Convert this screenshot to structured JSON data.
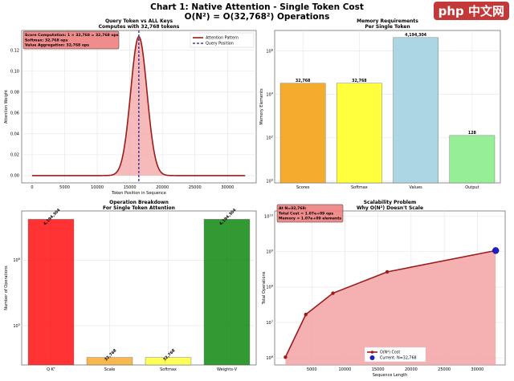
{
  "page": {
    "title_line1": "Chart 1: Native Attention - Single Token Cost",
    "title_line2": "O(N²) = O(32,768²) Operations",
    "watermark": "php 中文网"
  },
  "chart_data": [
    {
      "id": "attn",
      "type": "line",
      "title": "Query Token vs ALL Keys",
      "subtitle": "Computes with 32,768 tokens",
      "xlabel": "Token Position in Sequence",
      "ylabel": "Attention Weight",
      "xlim": [
        -1600,
        34400
      ],
      "ylim": [
        -0.007,
        0.139
      ],
      "xticks": [
        0,
        5000,
        10000,
        15000,
        20000,
        25000,
        30000
      ],
      "yticks": [
        0.0,
        0.02,
        0.04,
        0.06,
        0.08,
        0.1,
        0.12
      ],
      "ytick_labels": [
        "0.00",
        "0.02",
        "0.04",
        "0.06",
        "0.08",
        "0.10",
        "0.12"
      ],
      "gaussian": {
        "center": 16384,
        "sigma": 1250,
        "peak": 0.133,
        "x_end": 32767
      },
      "query_position": 16384,
      "legend": [
        "Attention Pattern",
        "Query Position"
      ],
      "annotation": [
        "Score Computation: 1 × 32,768 = 32,768 ops",
        "Softmax: 32,768 ops",
        "Value Aggregation: 32,768 ops"
      ],
      "colors": {
        "line": "#9b1c1c",
        "fill": "#f3a3a3",
        "query": "#1a1a8c",
        "annot_bg": "#f08080"
      }
    },
    {
      "id": "memory",
      "type": "bar",
      "title": "Memory Requirements",
      "subtitle": "Per Single Token",
      "ylabel": "Memory Elements",
      "yscale": "log",
      "ylim_log": [
        -0.08,
        6.95
      ],
      "ytick_exponents": [
        0,
        2,
        4,
        6
      ],
      "categories": [
        "Scores",
        "Softmax",
        "Values",
        "Output"
      ],
      "values": [
        32768,
        32768,
        4194304,
        128
      ],
      "value_labels": [
        "32,768",
        "32,768",
        "4,194,304",
        "128"
      ],
      "colors": [
        "#f4a623",
        "#ffff33",
        "#a9d4e2",
        "#90ee90"
      ]
    },
    {
      "id": "ops",
      "type": "bar",
      "title": "Operation Breakdown",
      "subtitle": "For Single Token Attention",
      "ylabel": "Number of Operations",
      "yscale": "log",
      "ylim_log": [
        4.4,
        6.75
      ],
      "ytick_exponents": [
        5,
        6
      ],
      "categories": [
        "Q·Kᵀ",
        "Scale",
        "Softmax",
        "Weights·V"
      ],
      "values": [
        4194304,
        32768,
        32768,
        4194304
      ],
      "value_labels": [
        "4,194,304",
        "32,768",
        "32,768",
        "4,194,304"
      ],
      "colors": [
        "#ff0000",
        "#f4a623",
        "#ffff33",
        "#008000"
      ]
    },
    {
      "id": "scale",
      "type": "area",
      "title": "Scalability Problem",
      "subtitle": "Why O(N²) Doesn't Scale",
      "xlabel": "Sequence Length",
      "ylabel": "Total Operations",
      "yscale": "log",
      "xlim": [
        -600,
        34200
      ],
      "ylim_log": [
        5.8,
        10.15
      ],
      "xticks": [
        5000,
        10000,
        15000,
        20000,
        25000,
        30000
      ],
      "ytick_exponents": [
        6,
        7,
        8,
        9,
        10
      ],
      "x": [
        1024,
        4096,
        8192,
        16384,
        32768
      ],
      "y": [
        1048576,
        16777216,
        67108864,
        268435456,
        1073741824
      ],
      "current": {
        "x": 32768,
        "y": 1073741824
      },
      "legend": [
        "O(N²) Cost",
        "Current: N=32,768"
      ],
      "annotation": [
        "At N=32,768:",
        "Total Cost = 1.07e+09 ops",
        "Memory = 1.07e+09 elements"
      ],
      "colors": {
        "line": "#9b1c1c",
        "fill": "#f3a3a3",
        "current": "#1d1dcf",
        "annot_bg": "#f08080"
      }
    }
  ]
}
